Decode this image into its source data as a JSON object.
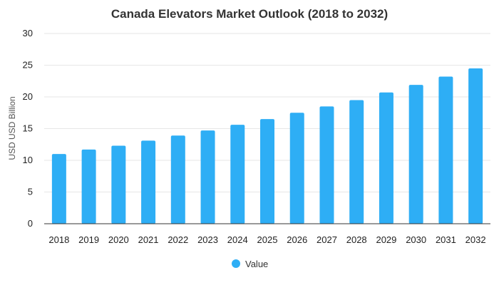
{
  "chart_data": {
    "type": "bar",
    "title": "Canada Elevators Market Outlook (2018 to 2032)",
    "xlabel": "",
    "ylabel": "USD USD Billion",
    "categories": [
      "2018",
      "2019",
      "2020",
      "2021",
      "2022",
      "2023",
      "2024",
      "2025",
      "2026",
      "2027",
      "2028",
      "2029",
      "2030",
      "2031",
      "2032"
    ],
    "series": [
      {
        "name": "Value",
        "values": [
          11.0,
          11.7,
          12.3,
          13.1,
          13.9,
          14.7,
          15.6,
          16.5,
          17.5,
          18.5,
          19.5,
          20.7,
          21.9,
          23.2,
          24.5
        ]
      }
    ],
    "ylim": [
      0,
      30
    ],
    "yticks": [
      0,
      5,
      10,
      15,
      20,
      25,
      30
    ],
    "grid": true,
    "legend_position": "bottom",
    "colors": {
      "bar": "#2eaef5"
    }
  }
}
